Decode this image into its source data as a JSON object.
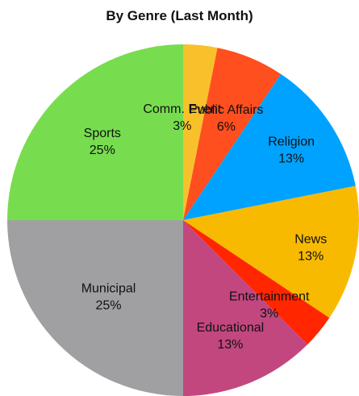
{
  "chart_data": {
    "type": "pie",
    "title": "By Genre (Last Month)",
    "slices": [
      {
        "label": "Comm. Event",
        "percent_label": "3%",
        "value": 3.125,
        "color": "#F8C12C"
      },
      {
        "label": "Public Affairs",
        "percent_label": "6%",
        "value": 6.25,
        "color": "#FF4F1F"
      },
      {
        "label": "Religion",
        "percent_label": "13%",
        "value": 12.5,
        "color": "#00A2FF"
      },
      {
        "label": "News",
        "percent_label": "13%",
        "value": 12.5,
        "color": "#F8BA00"
      },
      {
        "label": "Entertainment",
        "percent_label": "3%",
        "value": 3.125,
        "color": "#FF2600"
      },
      {
        "label": "Educational",
        "percent_label": "13%",
        "value": 12.5,
        "color": "#C2477F"
      },
      {
        "label": "Municipal",
        "percent_label": "25%",
        "value": 25,
        "color": "#A0A0A2"
      },
      {
        "label": "Sports",
        "percent_label": "25%",
        "value": 25,
        "color": "#77DD4F"
      }
    ]
  }
}
